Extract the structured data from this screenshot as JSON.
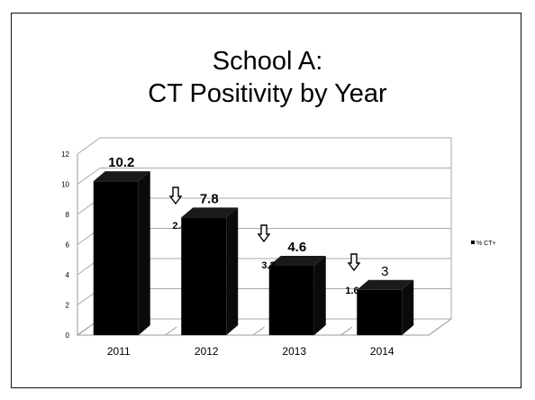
{
  "slide": {
    "title_line1": "School A:",
    "title_line2": "CT Positivity by Year"
  },
  "chart_data": {
    "type": "bar",
    "title": "School A: CT Positivity by Year",
    "categories": [
      "2011",
      "2012",
      "2013",
      "2014"
    ],
    "series": [
      {
        "name": "% CT+",
        "values": [
          10.2,
          7.8,
          4.6,
          3
        ],
        "color": "#000000"
      }
    ],
    "data_labels": [
      "10.2",
      "7.8",
      "4.6",
      "3"
    ],
    "data_label_bold": [
      true,
      true,
      true,
      false
    ],
    "ylim": [
      0,
      12
    ],
    "yticks": [
      0,
      2,
      4,
      6,
      8,
      10,
      12
    ],
    "grid": true,
    "three_d": true,
    "legend_position": "right",
    "annotations": [
      {
        "between": [
          "2011",
          "2012"
        ],
        "arrow": "down-arrow-icon",
        "text": "2.4"
      },
      {
        "between": [
          "2012",
          "2013"
        ],
        "arrow": "down-arrow-icon",
        "text": "3.2"
      },
      {
        "between": [
          "2013",
          "2014"
        ],
        "arrow": "down-arrow-icon",
        "text": "1.6"
      }
    ]
  }
}
